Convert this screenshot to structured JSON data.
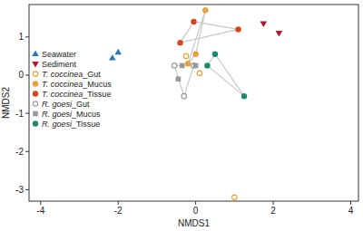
{
  "chart_data": {
    "type": "scatter",
    "x_label": "NMDS1",
    "y_label": "NMDS2",
    "xlim": [
      -4.3,
      4.2
    ],
    "ylim": [
      -3.3,
      1.85
    ],
    "xticks": [
      -4,
      -2,
      0,
      2,
      4
    ],
    "yticks": [
      -3,
      -2,
      -1,
      0,
      1
    ],
    "grid": false,
    "legend": "left",
    "series": [
      {
        "name": "Seawater",
        "color": "#2b7bb0",
        "marker": "triangle",
        "line_style": "none",
        "x": [
          -2.15,
          -2.0
        ],
        "values": [
          0.45,
          0.6
        ]
      },
      {
        "name": "Sediment",
        "color": "#b2182b",
        "marker": "triangle-down",
        "line_style": "none",
        "x": [
          1.75,
          2.15
        ],
        "values": [
          1.35,
          1.1
        ]
      },
      {
        "name": "T. coccinea_Gut",
        "color": "#e6a23c",
        "marker": "circle-open",
        "line_style": "none",
        "x": [
          -0.25,
          0.1,
          1.0
        ],
        "values": [
          0.5,
          0.05,
          -3.2
        ]
      },
      {
        "name": "T. coccinea_Mucus",
        "color": "#e6a23c",
        "marker": "circle",
        "line_style": "solid",
        "x": [
          0.25,
          0.0,
          -0.2
        ],
        "values": [
          1.7,
          0.55,
          0.3
        ]
      },
      {
        "name": "T. coccinea_Tissue",
        "color": "#d6451f",
        "marker": "circle",
        "line_style": "solid",
        "x": [
          -0.05,
          1.1,
          -0.4
        ],
        "values": [
          1.4,
          1.2,
          0.85
        ]
      },
      {
        "name": "R. goesi_Gut",
        "color": "#9a9a9a",
        "marker": "circle-open",
        "line_style": "solid",
        "x": [
          -0.55,
          -0.3,
          -0.05
        ],
        "values": [
          0.25,
          -0.55,
          0.25
        ]
      },
      {
        "name": "R. goesi_Mucus",
        "color": "#9a9a9a",
        "marker": "square",
        "line_style": "none",
        "x": [
          -0.35,
          0.0,
          -0.45
        ],
        "values": [
          0.25,
          0.25,
          -0.1
        ]
      },
      {
        "name": "R. goesi_Tissue",
        "color": "#1b8a6b",
        "marker": "circle",
        "line_style": "solid",
        "x": [
          0.5,
          1.25,
          0.3
        ],
        "values": [
          0.55,
          -0.55,
          0.25
        ]
      }
    ]
  }
}
